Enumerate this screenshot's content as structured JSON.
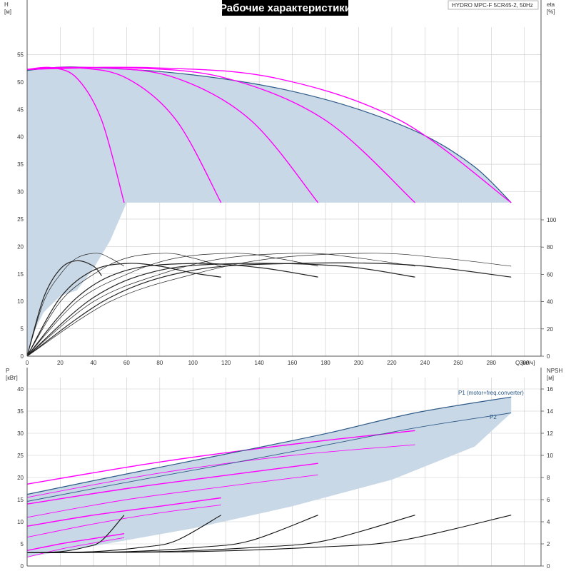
{
  "title": "Рабочие характеристики",
  "model": "HYDRO MPC-F 5CR45-2, 50Hz",
  "colors": {
    "envelope": "#c9d8e6",
    "qh": "#ff00ff",
    "eta": "#222222",
    "p1": "#2e5a88",
    "npsh": "#111111",
    "grid": "#cccccc",
    "axis": "#555555",
    "title_bg": "#000000"
  },
  "chart_data": [
    {
      "type": "line",
      "name": "top",
      "x_axis": {
        "label": "Q [м³/ч]",
        "range": [
          0,
          310
        ],
        "ticks": [
          0,
          20,
          40,
          60,
          80,
          100,
          120,
          140,
          160,
          180,
          200,
          220,
          240,
          260,
          280,
          300
        ]
      },
      "y_axis_left": {
        "label_lines": [
          "H",
          "[м]"
        ],
        "range": [
          0,
          60
        ],
        "ticks": [
          0,
          5,
          10,
          15,
          20,
          25,
          30,
          35,
          40,
          45,
          50,
          55
        ]
      },
      "y_axis_right": {
        "label_lines": [
          "eta",
          "[%]"
        ],
        "ticks": [
          0,
          20,
          40,
          60,
          80,
          100
        ]
      },
      "head_envelope_upper": [
        [
          0,
          52.1
        ],
        [
          20,
          52.7
        ],
        [
          40,
          52.6
        ],
        [
          80,
          51.9
        ],
        [
          120,
          50.5
        ],
        [
          160,
          48.3
        ],
        [
          200,
          45.0
        ],
        [
          240,
          40.2
        ],
        [
          270,
          34.5
        ],
        [
          292,
          28.0
        ]
      ],
      "head_envelope_lower": [
        [
          0,
          0
        ],
        [
          5,
          5
        ],
        [
          10,
          8
        ],
        [
          20,
          11
        ],
        [
          30,
          12
        ],
        [
          40,
          16
        ],
        [
          50,
          21
        ],
        [
          60,
          28
        ]
      ],
      "head_curves": [
        {
          "pumps": 1,
          "points": [
            [
              0,
              52.3
            ],
            [
              15,
              52.6
            ],
            [
              30,
              50.7
            ],
            [
              45,
              43.0
            ],
            [
              58.5,
              28.0
            ]
          ]
        },
        {
          "pumps": 2,
          "points": [
            [
              0,
              52.3
            ],
            [
              30,
              52.6
            ],
            [
              60,
              50.7
            ],
            [
              90,
              43.0
            ],
            [
              117,
              28.0
            ]
          ]
        },
        {
          "pumps": 3,
          "points": [
            [
              0,
              52.3
            ],
            [
              45,
              52.6
            ],
            [
              90,
              50.7
            ],
            [
              135,
              43.0
            ],
            [
              175.5,
              28.0
            ]
          ]
        },
        {
          "pumps": 4,
          "points": [
            [
              0,
              52.3
            ],
            [
              60,
              52.6
            ],
            [
              120,
              50.7
            ],
            [
              180,
              43.0
            ],
            [
              234,
              28.0
            ]
          ]
        },
        {
          "pumps": 5,
          "points": [
            [
              0,
              52.3
            ],
            [
              75,
              52.6
            ],
            [
              150,
              50.7
            ],
            [
              225,
              43.0
            ],
            [
              292,
              28.0
            ]
          ]
        }
      ],
      "eta_curves": [
        {
          "pumps": 1,
          "points": [
            [
              0,
              0
            ],
            [
              10,
              40
            ],
            [
              20,
              60
            ],
            [
              30,
              72
            ],
            [
              42,
              75.5
            ],
            [
              50,
              72
            ],
            [
              58.5,
              66
            ]
          ]
        },
        {
          "pumps": 2,
          "points": [
            [
              0,
              0
            ],
            [
              20,
              40
            ],
            [
              40,
              60
            ],
            [
              60,
              72
            ],
            [
              84,
              75.5
            ],
            [
              100,
              72
            ],
            [
              117,
              66
            ]
          ]
        },
        {
          "pumps": 3,
          "points": [
            [
              0,
              0
            ],
            [
              30,
              40
            ],
            [
              60,
              60
            ],
            [
              90,
              72
            ],
            [
              126,
              75.5
            ],
            [
              150,
              72
            ],
            [
              175.5,
              66
            ]
          ]
        },
        {
          "pumps": 4,
          "points": [
            [
              0,
              0
            ],
            [
              40,
              40
            ],
            [
              80,
              60
            ],
            [
              120,
              72
            ],
            [
              168,
              75.5
            ],
            [
              200,
              72
            ],
            [
              234,
              66
            ]
          ]
        },
        {
          "pumps": 5,
          "points": [
            [
              0,
              0
            ],
            [
              50,
              40
            ],
            [
              100,
              60
            ],
            [
              150,
              72
            ],
            [
              210,
              75.5
            ],
            [
              250,
              72
            ],
            [
              292,
              66
            ]
          ]
        }
      ],
      "eta_curves_reduced": [
        {
          "pumps": 1,
          "points": [
            [
              0,
              0
            ],
            [
              10,
              43
            ],
            [
              20,
              64
            ],
            [
              30,
              70
            ],
            [
              40,
              66
            ],
            [
              45,
              59
            ]
          ]
        },
        {
          "pumps": 2,
          "points": [
            [
              0,
              0
            ],
            [
              20,
              43
            ],
            [
              40,
              63
            ],
            [
              60,
              68
            ],
            [
              80,
              66
            ],
            [
              100,
              61
            ],
            [
              117,
              58
            ]
          ]
        },
        {
          "pumps": 3,
          "points": [
            [
              0,
              0
            ],
            [
              30,
              43
            ],
            [
              60,
              63
            ],
            [
              100,
              68
            ],
            [
              140,
              65
            ],
            [
              175.5,
              58
            ]
          ]
        },
        {
          "pumps": 4,
          "points": [
            [
              0,
              0
            ],
            [
              40,
              43
            ],
            [
              80,
              63
            ],
            [
              130,
              68
            ],
            [
              190,
              66
            ],
            [
              234,
              58
            ]
          ]
        },
        {
          "pumps": 5,
          "points": [
            [
              0,
              0
            ],
            [
              50,
              43
            ],
            [
              100,
              63
            ],
            [
              160,
              68
            ],
            [
              230,
              67
            ],
            [
              292,
              58
            ]
          ]
        }
      ]
    },
    {
      "type": "line",
      "name": "bottom",
      "x_axis": {
        "range": [
          0,
          310
        ]
      },
      "y_axis_left": {
        "label_lines": [
          "P",
          "[кВт]"
        ],
        "range": [
          0,
          40
        ],
        "ticks": [
          0,
          5,
          10,
          15,
          20,
          25,
          30,
          35,
          40
        ]
      },
      "y_axis_right": {
        "label_lines": [
          "NPSH",
          "[м]"
        ],
        "range": [
          0,
          16
        ],
        "ticks": [
          0,
          2,
          4,
          6,
          8,
          10,
          12,
          14,
          16
        ]
      },
      "series": [
        {
          "name": "P1 (motor+freq.converter)",
          "points": [
            [
              0,
              16.2
            ],
            [
              60,
              20.8
            ],
            [
              120,
              25.3
            ],
            [
              180,
              29.9
            ],
            [
              234,
              34.6
            ],
            [
              292,
              38.2
            ]
          ]
        },
        {
          "name": "P2",
          "points": [
            [
              0,
              14.6
            ],
            [
              60,
              18.9
            ],
            [
              120,
              23.0
            ],
            [
              180,
              27.3
            ],
            [
              234,
              31.2
            ],
            [
              292,
              34.6
            ]
          ]
        }
      ],
      "power_curves": [
        {
          "pumps": 1,
          "points": [
            [
              0,
              3.5
            ],
            [
              20,
              5.0
            ],
            [
              40,
              6.2
            ],
            [
              58.5,
              7.3
            ]
          ]
        },
        {
          "pumps": 2,
          "points": [
            [
              0,
              9.0
            ],
            [
              40,
              11.5
            ],
            [
              80,
              13.5
            ],
            [
              117,
              15.4
            ]
          ]
        },
        {
          "pumps": 3,
          "points": [
            [
              0,
              14.0
            ],
            [
              60,
              17.5
            ],
            [
              120,
              20.5
            ],
            [
              175.5,
              23.2
            ]
          ]
        },
        {
          "pumps": 4,
          "points": [
            [
              0,
              18.5
            ],
            [
              80,
              23.5
            ],
            [
              160,
              27.5
            ],
            [
              234,
              30.6
            ]
          ]
        },
        {
          "pumps": 1,
          "points": [
            [
              0,
              2.0
            ],
            [
              20,
              3.8
            ],
            [
              40,
              5.2
            ],
            [
              58.5,
              6.4
            ]
          ]
        },
        {
          "pumps": 2,
          "points": [
            [
              0,
              6.5
            ],
            [
              40,
              9.5
            ],
            [
              80,
              12.0
            ],
            [
              117,
              13.8
            ]
          ]
        },
        {
          "pumps": 3,
          "points": [
            [
              0,
              11.0
            ],
            [
              60,
              15.0
            ],
            [
              120,
              18.0
            ],
            [
              175.5,
              20.6
            ]
          ]
        },
        {
          "pumps": 4,
          "points": [
            [
              0,
              15.5
            ],
            [
              80,
              21.0
            ],
            [
              160,
              25.0
            ],
            [
              234,
              27.4
            ]
          ]
        }
      ],
      "npsh_curves": [
        {
          "pumps": 1,
          "points": [
            [
              0,
              1.2
            ],
            [
              20,
              1.3
            ],
            [
              35,
              1.7
            ],
            [
              45,
              2.3
            ],
            [
              58.5,
              4.6
            ]
          ]
        },
        {
          "pumps": 2,
          "points": [
            [
              0,
              1.2
            ],
            [
              40,
              1.3
            ],
            [
              70,
              1.7
            ],
            [
              90,
              2.3
            ],
            [
              117,
              4.6
            ]
          ]
        },
        {
          "pumps": 3,
          "points": [
            [
              0,
              1.2
            ],
            [
              60,
              1.3
            ],
            [
              105,
              1.7
            ],
            [
              135,
              2.3
            ],
            [
              175.5,
              4.6
            ]
          ]
        },
        {
          "pumps": 4,
          "points": [
            [
              0,
              1.2
            ],
            [
              80,
              1.3
            ],
            [
              140,
              1.7
            ],
            [
              180,
              2.3
            ],
            [
              234,
              4.6
            ]
          ]
        },
        {
          "pumps": 5,
          "points": [
            [
              0,
              1.2
            ],
            [
              100,
              1.3
            ],
            [
              175,
              1.7
            ],
            [
              225,
              2.3
            ],
            [
              292,
              4.6
            ]
          ]
        }
      ]
    }
  ]
}
